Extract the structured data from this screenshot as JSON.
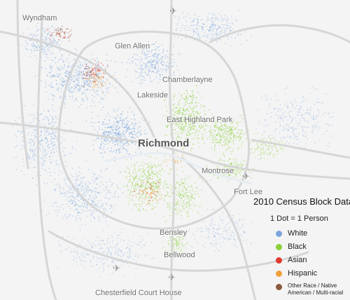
{
  "title": "2010 Census Block Data",
  "subtitle": "1 Dot = 1 Person",
  "legend": [
    {
      "label": "White",
      "color": "#7ba6dd"
    },
    {
      "label": "Black",
      "color": "#8bd13a"
    },
    {
      "label": "Asian",
      "color": "#e03a2e"
    },
    {
      "label": "Hispanic",
      "color": "#f0a13a"
    },
    {
      "label": "Other Race / Native American / Multi-racial",
      "color": "#8b5a3c"
    }
  ],
  "places": {
    "wyndham": "Wyndham",
    "glen_allen": "Glen Allen",
    "chamberlayne": "Chamberlayne",
    "lakeside": "Lakeside",
    "east_highland_park": "East Highland Park",
    "richmond": "Richmond",
    "montrose": "Montrose",
    "fort_lee": "Fort Lee",
    "bensley": "Bensley",
    "bellwood": "Bellwood",
    "chesterfield_court_house": "Chesterfield Court House"
  },
  "icons": {
    "airport": "airplane-icon"
  }
}
